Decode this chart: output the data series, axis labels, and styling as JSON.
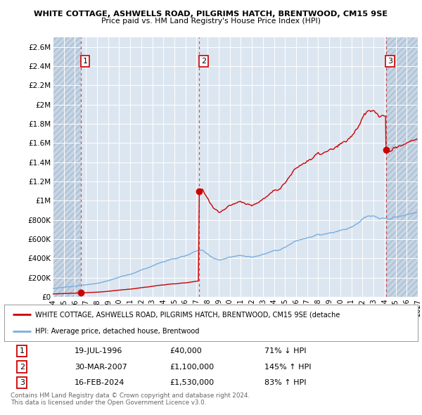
{
  "title1": "WHITE COTTAGE, ASHWELLS ROAD, PILGRIMS HATCH, BRENTWOOD, CM15 9SE",
  "title2": "Price paid vs. HM Land Registry's House Price Index (HPI)",
  "sale_dates_float": [
    1996.55,
    2007.25,
    2024.12
  ],
  "sale_prices": [
    40000,
    1100000,
    1530000
  ],
  "sale_labels": [
    "1",
    "2",
    "3"
  ],
  "hpi_line_color": "#7aaddc",
  "sale_line_color": "#cc0000",
  "sale_dot_color": "#cc0000",
  "dashed_line_color": "#cc3333",
  "background_color": "#ffffff",
  "plot_bg_color": "#dce6f1",
  "hatch_bg_color": "#c5d5e5",
  "ylim": [
    0,
    2700000
  ],
  "yticks": [
    0,
    200000,
    400000,
    600000,
    800000,
    1000000,
    1200000,
    1400000,
    1600000,
    1800000,
    2000000,
    2200000,
    2400000,
    2600000
  ],
  "ytick_labels": [
    "£0",
    "£200K",
    "£400K",
    "£600K",
    "£800K",
    "£1M",
    "£1.2M",
    "£1.4M",
    "£1.6M",
    "£1.8M",
    "£2M",
    "£2.2M",
    "£2.4M",
    "£2.6M"
  ],
  "xtick_start": 1994,
  "xtick_end": 2027,
  "xlim_left": 1994.0,
  "xlim_right": 2027.0,
  "legend_red_label": "WHITE COTTAGE, ASHWELLS ROAD, PILGRIMS HATCH, BRENTWOOD, CM15 9SE (detache",
  "legend_blue_label": "HPI: Average price, detached house, Brentwood",
  "table_data": [
    [
      "1",
      "19-JUL-1996",
      "£40,000",
      "71% ↓ HPI"
    ],
    [
      "2",
      "30-MAR-2007",
      "£1,100,000",
      "145% ↑ HPI"
    ],
    [
      "3",
      "16-FEB-2024",
      "£1,530,000",
      "83% ↑ HPI"
    ]
  ],
  "footnote": "Contains HM Land Registry data © Crown copyright and database right 2024.\nThis data is licensed under the Open Government Licence v3.0.",
  "label_box_color": "#ffffff",
  "label_box_edge": "#cc0000"
}
